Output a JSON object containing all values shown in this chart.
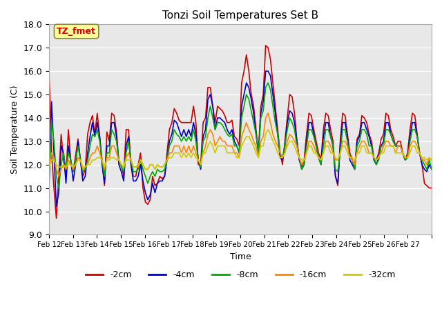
{
  "title": "Tonzi Soil Temperatures Set B",
  "xlabel": "Time",
  "ylabel": "Soil Temperature (C)",
  "ylim": [
    9.0,
    18.0
  ],
  "yticks": [
    9.0,
    10.0,
    11.0,
    12.0,
    13.0,
    14.0,
    15.0,
    16.0,
    17.0,
    18.0
  ],
  "xtick_labels": [
    "Feb 12",
    "Feb 13",
    "Feb 14",
    "Feb 15",
    "Feb 16",
    "Feb 17",
    "Feb 18",
    "Feb 19",
    "Feb 20",
    "Feb 21",
    "Feb 22",
    "Feb 23",
    "Feb 24",
    "Feb 25",
    "Feb 26",
    "Feb 27"
  ],
  "series_colors": [
    "#cc0000",
    "#0000cc",
    "#00aa00",
    "#ff8800",
    "#cccc00"
  ],
  "series_labels": [
    "-2cm",
    "-4cm",
    "-8cm",
    "-16cm",
    "-32cm"
  ],
  "annotation_text": "TZ_fmet",
  "annotation_color": "#cc0000",
  "annotation_bg": "#ffff99",
  "annotation_border": "#888844",
  "background_color": "#e8e8e8",
  "grid_color": "#ffffff",
  "n_points": 160,
  "days": 16,
  "cm2": [
    15.8,
    12.5,
    11.0,
    9.7,
    11.5,
    13.3,
    12.2,
    11.5,
    13.5,
    12.1,
    11.7,
    12.4,
    13.1,
    12.2,
    11.5,
    11.8,
    13.3,
    13.8,
    14.1,
    13.3,
    14.2,
    13.2,
    12.2,
    11.1,
    13.4,
    13.0,
    14.2,
    14.1,
    13.4,
    12.1,
    12.0,
    11.5,
    13.5,
    13.5,
    12.1,
    11.5,
    11.5,
    12.0,
    12.5,
    11.0,
    10.4,
    10.3,
    10.5,
    11.5,
    11.1,
    11.2,
    11.5,
    11.4,
    11.5,
    12.5,
    13.5,
    13.8,
    14.4,
    14.2,
    13.9,
    13.8,
    13.8,
    13.8,
    13.8,
    13.8,
    14.5,
    13.8,
    12.0,
    12.0,
    13.8,
    14.0,
    15.3,
    15.3,
    14.5,
    13.8,
    14.5,
    14.4,
    14.3,
    14.1,
    13.8,
    13.8,
    13.9,
    13.2,
    13.1,
    12.8,
    15.5,
    16.0,
    16.7,
    16.0,
    15.0,
    14.5,
    13.5,
    12.5,
    14.5,
    15.0,
    17.1,
    17.0,
    16.5,
    15.5,
    14.5,
    13.5,
    12.5,
    12.0,
    13.0,
    14.0,
    15.0,
    14.9,
    14.2,
    13.0,
    12.2,
    11.9,
    12.2,
    13.3,
    14.2,
    14.1,
    13.5,
    13.0,
    12.5,
    12.2,
    13.5,
    14.2,
    14.1,
    13.5,
    13.0,
    11.5,
    11.1,
    13.0,
    14.2,
    14.1,
    13.3,
    12.5,
    12.2,
    11.8,
    13.1,
    13.3,
    14.1,
    14.0,
    13.8,
    13.3,
    13.0,
    12.3,
    12.2,
    12.5,
    13.1,
    13.3,
    14.2,
    14.1,
    13.5,
    13.2,
    12.8,
    13.0,
    13.0,
    12.5,
    12.2,
    12.5,
    13.5,
    14.2,
    14.1,
    13.3,
    12.5,
    12.0,
    11.2,
    11.1,
    11.0,
    11.0
  ],
  "cm4": [
    11.2,
    14.7,
    12.5,
    10.2,
    10.8,
    12.8,
    12.5,
    11.2,
    12.8,
    12.2,
    11.3,
    12.0,
    13.0,
    12.2,
    11.3,
    11.5,
    12.5,
    13.2,
    13.8,
    13.2,
    13.8,
    13.2,
    12.0,
    11.2,
    12.8,
    12.8,
    13.8,
    13.8,
    13.2,
    12.0,
    11.7,
    11.3,
    12.8,
    13.2,
    12.0,
    11.3,
    11.3,
    11.5,
    12.0,
    11.3,
    10.8,
    10.5,
    10.7,
    11.2,
    10.8,
    11.2,
    11.3,
    11.3,
    11.5,
    12.2,
    13.0,
    13.3,
    13.9,
    13.8,
    13.5,
    13.2,
    13.5,
    13.2,
    13.5,
    13.2,
    13.8,
    13.3,
    12.2,
    11.8,
    13.2,
    13.5,
    14.8,
    15.0,
    14.5,
    13.5,
    14.0,
    14.0,
    13.9,
    13.8,
    13.5,
    13.3,
    13.5,
    13.0,
    12.8,
    12.5,
    14.5,
    15.0,
    15.5,
    15.3,
    14.8,
    14.2,
    13.3,
    12.5,
    14.2,
    14.7,
    16.0,
    16.0,
    15.8,
    15.0,
    14.2,
    13.3,
    12.3,
    12.2,
    12.8,
    13.8,
    14.3,
    14.2,
    13.8,
    13.0,
    12.2,
    11.8,
    12.0,
    13.0,
    13.8,
    13.8,
    13.3,
    12.8,
    12.3,
    12.0,
    13.2,
    13.8,
    13.8,
    13.2,
    12.8,
    11.5,
    11.2,
    12.8,
    13.8,
    13.8,
    13.2,
    12.2,
    12.0,
    11.8,
    13.0,
    13.2,
    13.8,
    13.8,
    13.5,
    13.2,
    12.8,
    12.2,
    12.0,
    12.3,
    12.8,
    13.0,
    13.8,
    13.8,
    13.3,
    13.0,
    12.8,
    12.8,
    12.8,
    12.5,
    12.2,
    12.3,
    13.2,
    13.8,
    13.8,
    13.2,
    12.5,
    12.0,
    11.8,
    11.7,
    12.0,
    11.8
  ],
  "cm8": [
    11.5,
    13.8,
    13.0,
    11.5,
    11.0,
    12.0,
    12.5,
    11.8,
    12.5,
    12.2,
    11.7,
    12.2,
    12.8,
    12.2,
    11.7,
    11.8,
    12.2,
    12.8,
    13.3,
    13.2,
    13.5,
    13.0,
    12.2,
    11.5,
    12.5,
    12.5,
    13.5,
    13.3,
    13.0,
    12.2,
    11.9,
    11.7,
    12.5,
    13.0,
    12.2,
    11.7,
    11.7,
    11.8,
    12.2,
    11.8,
    11.5,
    11.2,
    11.5,
    11.7,
    11.5,
    11.8,
    11.7,
    11.7,
    11.8,
    12.2,
    12.8,
    13.0,
    13.5,
    13.3,
    13.2,
    13.0,
    13.2,
    13.0,
    13.2,
    13.0,
    13.5,
    13.0,
    12.2,
    11.9,
    13.0,
    13.2,
    14.0,
    14.5,
    14.0,
    13.5,
    13.8,
    13.8,
    13.7,
    13.5,
    13.3,
    13.2,
    13.3,
    12.8,
    12.8,
    12.5,
    14.0,
    14.5,
    15.0,
    14.8,
    14.3,
    13.8,
    13.3,
    12.5,
    14.0,
    14.3,
    15.3,
    15.5,
    15.2,
    14.5,
    13.8,
    13.3,
    12.5,
    12.3,
    12.8,
    13.5,
    14.0,
    13.8,
    13.5,
    12.8,
    12.3,
    11.8,
    12.0,
    12.8,
    13.5,
    13.5,
    13.2,
    12.8,
    12.3,
    12.0,
    12.8,
    13.5,
    13.5,
    13.2,
    12.8,
    11.8,
    11.7,
    12.5,
    13.5,
    13.5,
    13.0,
    12.3,
    12.2,
    11.8,
    12.8,
    13.0,
    13.5,
    13.5,
    13.3,
    12.8,
    12.8,
    12.3,
    12.0,
    12.2,
    12.8,
    12.8,
    13.5,
    13.5,
    13.3,
    13.0,
    12.8,
    12.8,
    12.8,
    12.5,
    12.2,
    12.3,
    13.0,
    13.5,
    13.5,
    13.2,
    12.5,
    12.2,
    12.0,
    11.8,
    12.2,
    11.8
  ],
  "cm16": [
    11.9,
    12.5,
    12.3,
    11.8,
    11.5,
    11.8,
    12.0,
    11.8,
    12.2,
    12.0,
    11.8,
    12.0,
    12.3,
    12.2,
    11.8,
    11.9,
    12.0,
    12.3,
    12.5,
    12.5,
    12.8,
    12.5,
    12.2,
    11.8,
    12.3,
    12.3,
    12.8,
    12.8,
    12.5,
    12.2,
    12.0,
    11.9,
    12.3,
    12.5,
    12.2,
    11.9,
    11.9,
    11.9,
    12.2,
    12.0,
    11.8,
    11.8,
    12.0,
    12.0,
    11.8,
    12.0,
    11.9,
    11.9,
    12.0,
    12.2,
    12.5,
    12.5,
    12.8,
    12.8,
    12.8,
    12.5,
    12.8,
    12.5,
    12.8,
    12.5,
    12.8,
    12.5,
    12.2,
    12.0,
    12.5,
    12.8,
    13.3,
    13.5,
    13.3,
    12.8,
    13.0,
    13.2,
    13.0,
    13.0,
    12.8,
    12.8,
    12.8,
    12.5,
    12.5,
    12.3,
    13.2,
    13.5,
    13.8,
    13.5,
    13.3,
    13.0,
    12.8,
    12.3,
    13.0,
    13.2,
    14.0,
    14.2,
    13.8,
    13.3,
    13.0,
    12.8,
    12.5,
    12.3,
    12.5,
    13.0,
    13.3,
    13.2,
    13.0,
    12.8,
    12.3,
    12.0,
    12.2,
    12.5,
    13.0,
    13.0,
    12.8,
    12.5,
    12.3,
    12.2,
    12.5,
    13.0,
    13.0,
    12.8,
    12.5,
    12.2,
    12.2,
    12.5,
    13.0,
    13.0,
    12.8,
    12.3,
    12.2,
    12.0,
    12.5,
    12.8,
    13.0,
    13.0,
    12.8,
    12.5,
    12.5,
    12.3,
    12.2,
    12.3,
    12.5,
    12.8,
    13.0,
    13.0,
    12.8,
    12.8,
    12.5,
    12.8,
    12.8,
    12.5,
    12.3,
    12.3,
    12.8,
    13.0,
    13.0,
    12.8,
    12.5,
    12.2,
    12.2,
    12.0,
    12.3,
    12.2
  ],
  "cm32": [
    11.9,
    12.2,
    12.2,
    12.0,
    11.9,
    11.9,
    12.0,
    11.9,
    12.0,
    12.0,
    11.9,
    12.0,
    12.2,
    12.2,
    11.9,
    11.9,
    12.0,
    12.0,
    12.2,
    12.2,
    12.3,
    12.3,
    12.2,
    11.9,
    12.2,
    12.2,
    12.3,
    12.3,
    12.2,
    12.2,
    12.0,
    11.9,
    12.2,
    12.2,
    12.2,
    11.9,
    11.9,
    12.0,
    12.2,
    12.0,
    11.8,
    11.8,
    12.0,
    12.0,
    11.8,
    12.0,
    11.9,
    11.9,
    12.0,
    12.2,
    12.3,
    12.3,
    12.5,
    12.5,
    12.5,
    12.3,
    12.5,
    12.3,
    12.5,
    12.3,
    12.5,
    12.3,
    12.2,
    12.0,
    12.5,
    12.5,
    12.8,
    13.0,
    12.8,
    12.5,
    12.8,
    12.8,
    12.8,
    12.8,
    12.5,
    12.5,
    12.5,
    12.5,
    12.3,
    12.3,
    12.8,
    13.0,
    13.2,
    13.2,
    13.0,
    12.8,
    12.5,
    12.3,
    12.8,
    12.8,
    13.3,
    13.5,
    13.3,
    13.0,
    12.8,
    12.5,
    12.3,
    12.3,
    12.5,
    12.8,
    13.0,
    13.0,
    12.8,
    12.5,
    12.3,
    12.2,
    12.2,
    12.5,
    12.8,
    12.8,
    12.5,
    12.5,
    12.3,
    12.2,
    12.5,
    12.8,
    12.8,
    12.5,
    12.5,
    12.3,
    12.2,
    12.5,
    12.8,
    12.8,
    12.5,
    12.3,
    12.3,
    12.2,
    12.5,
    12.5,
    12.8,
    12.8,
    12.5,
    12.5,
    12.5,
    12.3,
    12.2,
    12.3,
    12.5,
    12.5,
    12.8,
    12.8,
    12.8,
    12.8,
    12.5,
    12.5,
    12.5,
    12.5,
    12.3,
    12.3,
    12.5,
    12.8,
    12.8,
    12.5,
    12.5,
    12.3,
    12.3,
    12.2,
    12.3,
    12.2
  ]
}
